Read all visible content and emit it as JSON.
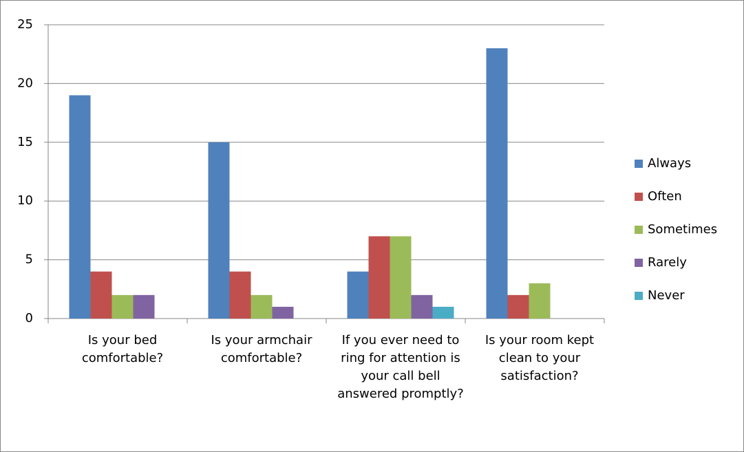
{
  "chart_data": {
    "type": "bar",
    "categories": [
      "Is your bed comfortable?",
      "Is your armchair comfortable?",
      "If you ever need to ring for attention is your call bell answered promptly?",
      "Is your room kept clean to your satisfaction?"
    ],
    "series": [
      {
        "name": "Always",
        "color": "#4f81bd",
        "values": [
          19,
          15,
          4,
          23
        ]
      },
      {
        "name": "Often",
        "color": "#c0504d",
        "values": [
          4,
          4,
          7,
          2
        ]
      },
      {
        "name": "Sometimes",
        "color": "#9bbb59",
        "values": [
          2,
          2,
          7,
          3
        ]
      },
      {
        "name": "Rarely",
        "color": "#8064a2",
        "values": [
          2,
          1,
          2,
          0
        ]
      },
      {
        "name": "Never",
        "color": "#4bacc6",
        "values": [
          0,
          0,
          1,
          0
        ]
      }
    ],
    "ylim": [
      0,
      25
    ],
    "yticks": [
      0,
      5,
      10,
      15,
      20,
      25
    ],
    "grid": true,
    "legend": "right"
  }
}
